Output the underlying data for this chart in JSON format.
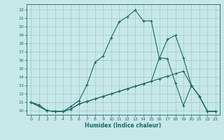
{
  "xlabel": "Humidex (Indice chaleur)",
  "xlim": [
    -0.5,
    23.5
  ],
  "ylim": [
    9.5,
    22.7
  ],
  "xticks": [
    0,
    1,
    2,
    3,
    4,
    5,
    6,
    7,
    8,
    9,
    10,
    11,
    12,
    13,
    14,
    15,
    16,
    17,
    18,
    19,
    20,
    21,
    22,
    23
  ],
  "yticks": [
    10,
    11,
    12,
    13,
    14,
    15,
    16,
    17,
    18,
    19,
    20,
    21,
    22
  ],
  "bg_color": "#c8e8e8",
  "grid_color": "#a0c8c8",
  "line_color": "#1a6868",
  "line1_x": [
    0,
    1,
    2,
    3,
    4,
    5,
    6,
    7,
    8,
    9,
    10,
    11,
    12,
    13,
    14,
    15,
    16,
    17,
    18,
    19,
    20,
    21,
    22,
    23
  ],
  "line1_y": [
    11.0,
    10.7,
    10.0,
    9.9,
    9.9,
    10.5,
    11.2,
    13.1,
    15.8,
    16.5,
    18.7,
    20.6,
    21.2,
    22.0,
    20.7,
    20.7,
    16.2,
    18.5,
    19.0,
    16.3,
    13.0,
    11.7,
    9.9,
    9.9
  ],
  "line2_x": [
    0,
    2,
    3,
    4,
    5,
    6,
    7,
    8,
    9,
    10,
    11,
    12,
    13,
    14,
    15,
    16,
    17,
    18,
    19,
    20,
    21,
    22,
    23
  ],
  "line2_y": [
    11.0,
    10.0,
    9.9,
    9.9,
    10.2,
    10.8,
    11.1,
    11.4,
    11.7,
    12.0,
    12.3,
    12.6,
    12.9,
    13.2,
    13.5,
    16.3,
    16.2,
    13.3,
    10.6,
    13.0,
    11.7,
    9.9,
    9.9
  ],
  "line3_x": [
    0,
    2,
    3,
    4,
    5,
    6,
    7,
    8,
    9,
    10,
    11,
    12,
    13,
    14,
    15,
    16,
    17,
    18,
    19,
    20,
    21,
    22,
    23
  ],
  "line3_y": [
    11.0,
    10.0,
    9.9,
    9.9,
    10.2,
    10.8,
    11.1,
    11.4,
    11.7,
    12.0,
    12.3,
    12.6,
    12.9,
    13.2,
    13.5,
    13.8,
    14.1,
    14.4,
    14.7,
    13.0,
    11.7,
    9.9,
    9.9
  ]
}
